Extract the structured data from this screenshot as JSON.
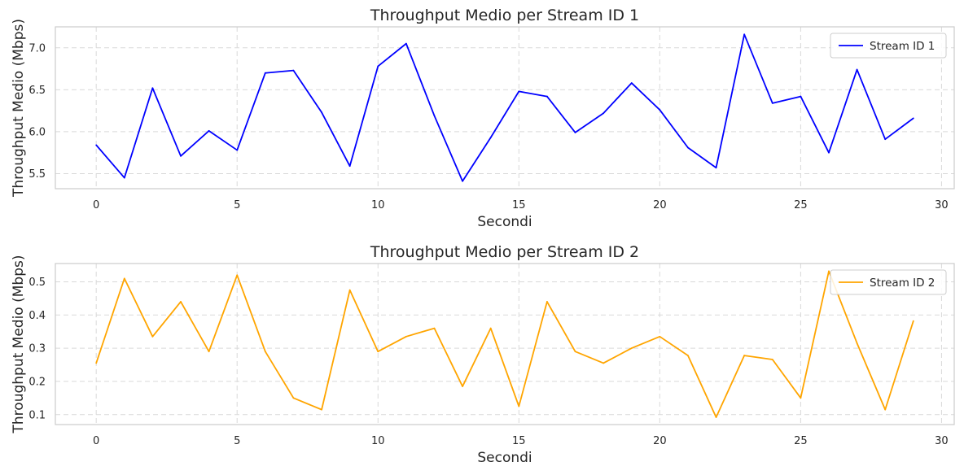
{
  "chart_data": [
    {
      "type": "line",
      "title": "Throughput Medio per Stream ID 1",
      "xlabel": "Secondi",
      "ylabel": "Throughput Medio (Mbps)",
      "xlim": [
        -1.45,
        30.45
      ],
      "ylim": [
        5.32,
        7.25
      ],
      "xticks": [
        0,
        5,
        10,
        15,
        20,
        25,
        30
      ],
      "yticks": [
        5.5,
        6.0,
        6.5,
        7.0
      ],
      "ytick_labels": [
        "5.5",
        "6.0",
        "6.5",
        "7.0"
      ],
      "grid": true,
      "legend_position": "top-right",
      "series": [
        {
          "name": "Stream ID 1",
          "color": "#0000ff",
          "x": [
            0,
            1,
            2,
            3,
            4,
            5,
            6,
            7,
            8,
            9,
            10,
            11,
            12,
            13,
            14,
            15,
            16,
            17,
            18,
            19,
            20,
            21,
            22,
            23,
            24,
            25,
            26,
            27,
            28,
            29
          ],
          "values": [
            5.84,
            5.45,
            6.52,
            5.71,
            6.01,
            5.78,
            6.7,
            6.73,
            6.23,
            5.59,
            6.78,
            7.05,
            6.19,
            5.41,
            5.93,
            6.48,
            6.42,
            5.99,
            6.22,
            6.58,
            6.26,
            5.81,
            5.57,
            7.16,
            6.34,
            6.42,
            5.75,
            6.74,
            5.91,
            6.16
          ]
        }
      ]
    },
    {
      "type": "line",
      "title": "Throughput Medio per Stream ID 2",
      "xlabel": "Secondi",
      "ylabel": "Throughput Medio (Mbps)",
      "xlim": [
        -1.45,
        30.45
      ],
      "ylim": [
        0.07,
        0.555
      ],
      "xticks": [
        0,
        5,
        10,
        15,
        20,
        25,
        30
      ],
      "yticks": [
        0.1,
        0.2,
        0.3,
        0.4,
        0.5
      ],
      "ytick_labels": [
        "0.1",
        "0.2",
        "0.3",
        "0.4",
        "0.5"
      ],
      "grid": true,
      "legend_position": "top-right",
      "series": [
        {
          "name": "Stream ID 2",
          "color": "#ffa500",
          "x": [
            0,
            1,
            2,
            3,
            4,
            5,
            6,
            7,
            8,
            9,
            10,
            11,
            12,
            13,
            14,
            15,
            16,
            17,
            18,
            19,
            20,
            21,
            22,
            23,
            24,
            25,
            26,
            27,
            28,
            29
          ],
          "values": [
            0.255,
            0.51,
            0.335,
            0.44,
            0.29,
            0.52,
            0.29,
            0.15,
            0.115,
            0.475,
            0.29,
            0.335,
            0.36,
            0.185,
            0.36,
            0.125,
            0.44,
            0.29,
            0.255,
            0.3,
            0.335,
            0.278,
            0.092,
            0.278,
            0.266,
            0.15,
            0.532,
            0.315,
            0.115,
            0.382
          ]
        }
      ]
    }
  ]
}
